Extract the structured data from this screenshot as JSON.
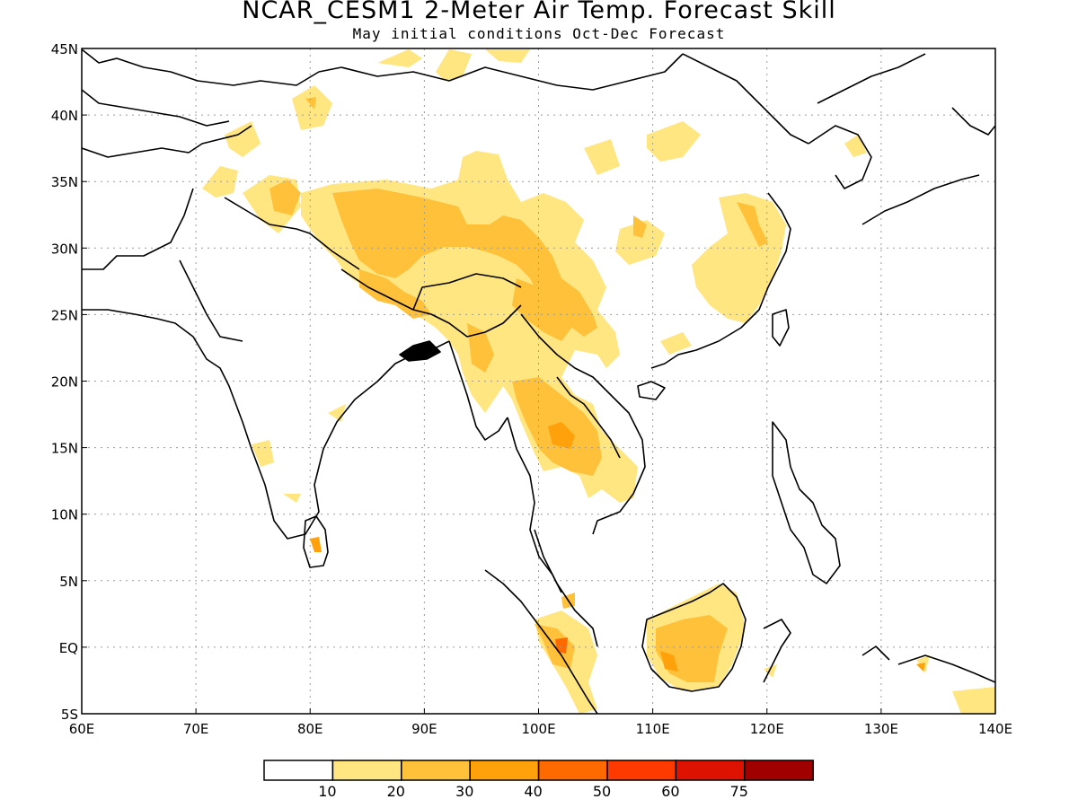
{
  "title": "NCAR_CESM1 2-Meter Air Temp. Forecast Skill",
  "subtitle": "May initial conditions  Oct-Dec Forecast",
  "colors": {
    "frame": "#000000",
    "grid": "#9a9a9a",
    "coast": "#000000",
    "levels": [
      "#ffffff",
      "#ffe680",
      "#ffc03a",
      "#ffa10a",
      "#ff6a00",
      "#ff3a00",
      "#dd1200",
      "#a00000"
    ]
  },
  "axes": {
    "x_ticks": [
      "60E",
      "70E",
      "80E",
      "90E",
      "100E",
      "110E",
      "120E",
      "130E",
      "140E"
    ],
    "y_ticks": [
      "45N",
      "40N",
      "35N",
      "30N",
      "25N",
      "20N",
      "15N",
      "10N",
      "5N",
      "EQ",
      "5S"
    ]
  },
  "colorbar": {
    "labels": [
      "10",
      "20",
      "30",
      "40",
      "50",
      "60",
      "75"
    ]
  }
}
